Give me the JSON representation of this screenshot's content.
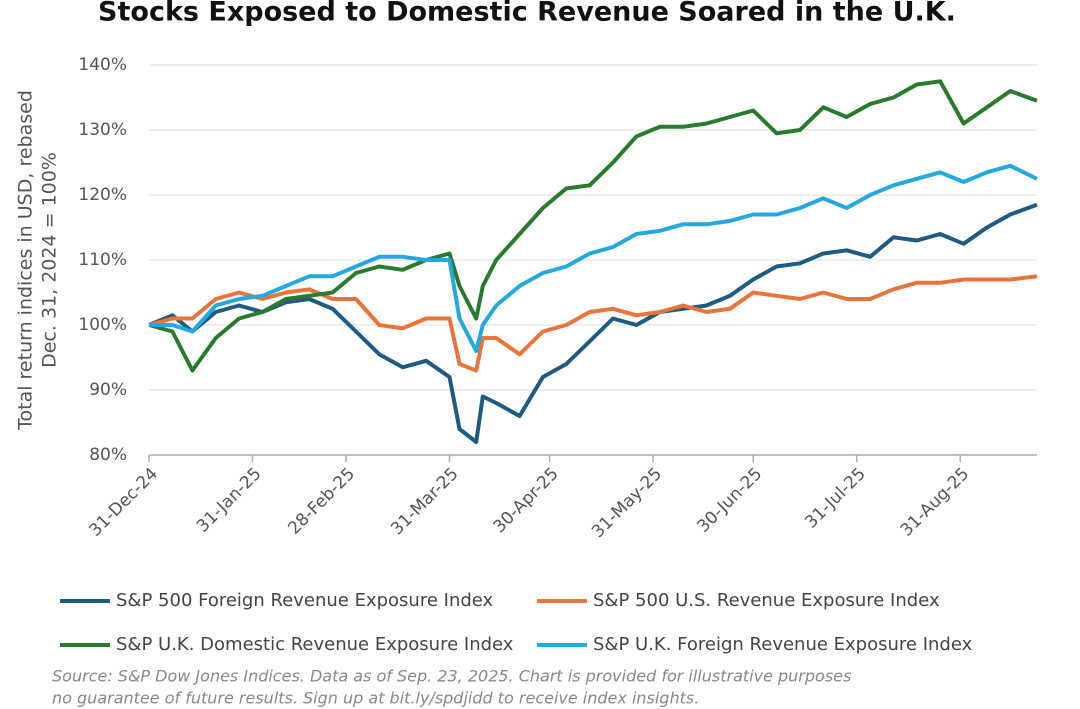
{
  "chart_data": {
    "type": "line",
    "title": "Stocks Exposed to Domestic Revenue Soared in the U.K.",
    "y_label": [
      "Total return indices in USD, rebased",
      "Dec. 31, 2024 = 100%"
    ],
    "source": [
      "Source: S&P Dow Jones Indices.  Data as of Sep. 23, 2025. Chart is provided for illustrative purposes",
      "no guarantee of future results. Sign up at bit.ly/spdjidd to receive index insights."
    ],
    "x": [
      "2024-12-31",
      "2025-01-07",
      "2025-01-13",
      "2025-01-20",
      "2025-01-27",
      "2025-02-03",
      "2025-02-10",
      "2025-02-17",
      "2025-02-24",
      "2025-03-03",
      "2025-03-10",
      "2025-03-17",
      "2025-03-24",
      "2025-03-31",
      "2025-04-03",
      "2025-04-08",
      "2025-04-10",
      "2025-04-14",
      "2025-04-21",
      "2025-04-28",
      "2025-05-05",
      "2025-05-12",
      "2025-05-19",
      "2025-05-26",
      "2025-06-02",
      "2025-06-09",
      "2025-06-16",
      "2025-06-23",
      "2025-06-30",
      "2025-07-07",
      "2025-07-14",
      "2025-07-21",
      "2025-07-28",
      "2025-08-04",
      "2025-08-11",
      "2025-08-18",
      "2025-08-25",
      "2025-09-01",
      "2025-09-08",
      "2025-09-15",
      "2025-09-23"
    ],
    "series": [
      {
        "name": "S&P 500 Foreign Revenue Exposure Index",
        "color": "#1f5a82",
        "values": [
          100,
          101.5,
          99,
          102,
          103,
          102,
          103.5,
          104,
          102.5,
          99,
          95.5,
          93.5,
          94.5,
          92,
          84,
          82,
          89,
          88,
          86,
          92,
          94,
          97.5,
          101,
          100,
          102,
          102.5,
          103,
          104.5,
          107,
          109,
          109.5,
          111,
          111.5,
          110.5,
          113.5,
          113,
          114,
          112.5,
          115,
          117,
          118.5
        ]
      },
      {
        "name": "S&P 500 U.S. Revenue Exposure Index",
        "color": "#e8743b",
        "values": [
          100,
          101,
          101,
          104,
          105,
          104,
          105,
          105.5,
          104,
          104,
          100,
          99.5,
          101,
          101,
          94,
          93,
          98,
          98,
          95.5,
          99,
          100,
          102,
          102.5,
          101.5,
          102,
          103,
          102,
          102.5,
          105,
          104.5,
          104,
          105,
          104,
          104,
          105.5,
          106.5,
          106.5,
          107,
          107,
          107,
          107.5
        ]
      },
      {
        "name": "S&P U.K. Domestic Revenue Exposure Index",
        "color": "#2a7a2e",
        "values": [
          100,
          99,
          93,
          98,
          101,
          102,
          104,
          104.5,
          105,
          108,
          109,
          108.5,
          110,
          111,
          106,
          101,
          106,
          110,
          114,
          118,
          121,
          121.5,
          125,
          129,
          130.5,
          130.5,
          131,
          132,
          133,
          129.5,
          130,
          133.5,
          132,
          134,
          135,
          137,
          137.5,
          131,
          133.5,
          136,
          134.5
        ]
      },
      {
        "name": "S&P U.K. Foreign Revenue Exposure Index",
        "color": "#23a8e0",
        "values": [
          100,
          100,
          99,
          103,
          104,
          104.5,
          106,
          107.5,
          107.5,
          109,
          110.5,
          110.5,
          110,
          110,
          101,
          96,
          100,
          103,
          106,
          108,
          109,
          111,
          112,
          114,
          114.5,
          115.5,
          115.5,
          116,
          117,
          117,
          118,
          119.5,
          118,
          120,
          121.5,
          122.5,
          123.5,
          122,
          123.5,
          124.5,
          122.5
        ]
      }
    ],
    "xlim": [
      "2024-12-31",
      "2025-09-23"
    ],
    "xticks": [
      {
        "value": "2024-12-31",
        "label": "31-Dec-24"
      },
      {
        "value": "2025-01-31",
        "label": "31-Jan-25"
      },
      {
        "value": "2025-02-28",
        "label": "28-Feb-25"
      },
      {
        "value": "2025-03-31",
        "label": "31-Mar-25"
      },
      {
        "value": "2025-04-30",
        "label": "30-Apr-25"
      },
      {
        "value": "2025-05-31",
        "label": "31-May-25"
      },
      {
        "value": "2025-06-30",
        "label": "30-Jun-25"
      },
      {
        "value": "2025-07-31",
        "label": "31-Jul-25"
      },
      {
        "value": "2025-08-31",
        "label": "31-Aug-25"
      }
    ],
    "ylim": [
      80,
      140
    ],
    "yticks": [
      {
        "value": 80,
        "label": "80%"
      },
      {
        "value": 90,
        "label": "90%"
      },
      {
        "value": 100,
        "label": "100%"
      },
      {
        "value": 110,
        "label": "110%"
      },
      {
        "value": 120,
        "label": "120%"
      },
      {
        "value": 130,
        "label": "130%"
      },
      {
        "value": 140,
        "label": "140%"
      }
    ],
    "grid": true
  }
}
